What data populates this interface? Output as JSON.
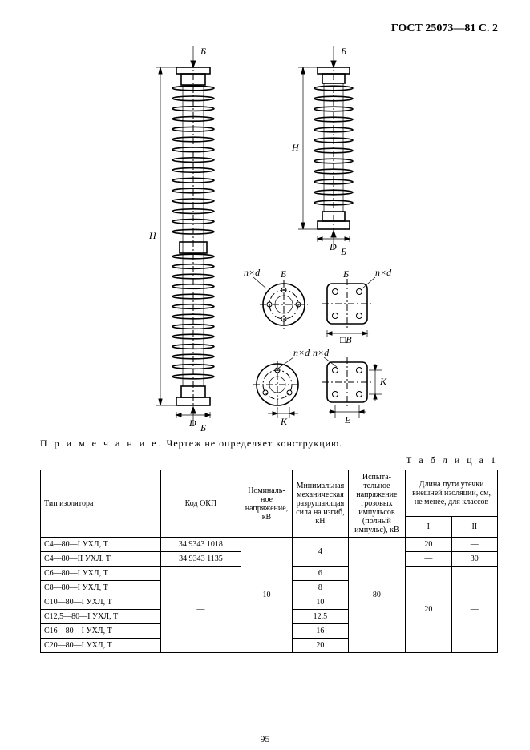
{
  "header": "ГОСТ 25073—81 С. 2",
  "note_label": "П р и м е ч а н и е.",
  "note_text": "Чертеж не определяет конструкцию.",
  "table_caption": "Т а б л и ц а  1",
  "page_number": "95",
  "drawing": {
    "labels": {
      "B": "Б",
      "H": "H",
      "D": "D",
      "nxd": "n×d",
      "B_dim": "□B",
      "K": "K",
      "E": "E"
    }
  },
  "table": {
    "headers": {
      "type": "Тип изолятора",
      "code": "Код ОКП",
      "nominal": "Номиналь­ное напряже­ние, кВ",
      "mech": "Минималь­ная меха­ническая разрушаю­щая сила на изгиб, кН",
      "impulse": "Испыта­тельное напряжение грозовых импульсов (полный импульс), кВ",
      "leak_group": "Длина пути утечки внешней изоляции, см, не менее, для классов",
      "leak_I": "I",
      "leak_II": "II"
    },
    "rows": [
      {
        "type": "С4—80—I УХЛ, Т",
        "code": "34 9343 1018",
        "mech": "4",
        "leakI": "20",
        "leakII": "—"
      },
      {
        "type": "С4—80—II УХЛ, Т",
        "code": "34 9343 1135",
        "mech": "",
        "leakI": "—",
        "leakII": "30"
      },
      {
        "type": "С6—80—I УХЛ, Т",
        "code": "",
        "mech": "6",
        "leakI": "",
        "leakII": ""
      },
      {
        "type": "С8—80—I УХЛ, Т",
        "code": "",
        "mech": "8",
        "leakI": "",
        "leakII": ""
      },
      {
        "type": "С10—80—I УХЛ, Т",
        "code": "",
        "mech": "10",
        "leakI": "",
        "leakII": ""
      },
      {
        "type": "С12,5—80—I УХЛ, Т",
        "code": "",
        "mech": "12,5",
        "leakI": "",
        "leakII": ""
      },
      {
        "type": "С16—80—I УХЛ, Т",
        "code": "",
        "mech": "16",
        "leakI": "",
        "leakII": ""
      },
      {
        "type": "С20—80—I УХЛ, Т",
        "code": "",
        "mech": "20",
        "leakI": "",
        "leakII": ""
      }
    ],
    "nominal_val": "10",
    "impulse_val": "80",
    "code_dash": "—",
    "leakI_group": "20",
    "leakII_group": "—"
  }
}
